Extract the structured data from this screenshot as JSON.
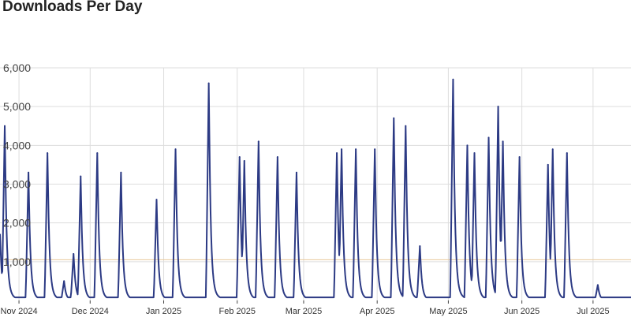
{
  "colors": {
    "line": "#2c3a84",
    "grid": "#dddddd",
    "reference": "#e8c89a",
    "axis": "#444444"
  },
  "chart_data": {
    "type": "line",
    "title": "Downloads Per Day",
    "xlabel": "",
    "ylabel": "",
    "ylim": [
      0,
      6000
    ],
    "yticks": [
      1000,
      2000,
      3000,
      4000,
      5000,
      6000
    ],
    "ytick_labels": [
      "1,000",
      "2,000",
      "3,000",
      "4,000",
      "5,000",
      "6,000"
    ],
    "xlim": [
      "2024-10-24",
      "2025-07-17"
    ],
    "xticks": [
      {
        "date": "2024-11-01",
        "label": "Nov 2024"
      },
      {
        "date": "2024-12-01",
        "label": "Dec 2024"
      },
      {
        "date": "2025-01-01",
        "label": "Jan 2025"
      },
      {
        "date": "2025-02-01",
        "label": "Feb 2025"
      },
      {
        "date": "2025-03-01",
        "label": "Mar 2025"
      },
      {
        "date": "2025-04-01",
        "label": "Apr 2025"
      },
      {
        "date": "2025-05-01",
        "label": "May 2025"
      },
      {
        "date": "2025-06-01",
        "label": "Jun 2025"
      },
      {
        "date": "2025-07-01",
        "label": "Jul 2025"
      }
    ],
    "reference_line": 1050,
    "grid": true,
    "baseline": 80,
    "peaks": [
      {
        "date": "2024-10-24",
        "value": 1700
      },
      {
        "date": "2024-10-26",
        "value": 4500
      },
      {
        "date": "2024-11-05",
        "value": 3300
      },
      {
        "date": "2024-11-13",
        "value": 3800
      },
      {
        "date": "2024-11-20",
        "value": 500
      },
      {
        "date": "2024-11-24",
        "value": 1200
      },
      {
        "date": "2024-11-27",
        "value": 3200
      },
      {
        "date": "2024-12-04",
        "value": 3800
      },
      {
        "date": "2024-12-14",
        "value": 3300
      },
      {
        "date": "2024-12-29",
        "value": 2600
      },
      {
        "date": "2025-01-06",
        "value": 3900
      },
      {
        "date": "2025-01-20",
        "value": 5600
      },
      {
        "date": "2025-02-02",
        "value": 3700
      },
      {
        "date": "2025-02-04",
        "value": 3600
      },
      {
        "date": "2025-02-10",
        "value": 4100
      },
      {
        "date": "2025-02-18",
        "value": 3700
      },
      {
        "date": "2025-02-26",
        "value": 3300
      },
      {
        "date": "2025-03-15",
        "value": 3800
      },
      {
        "date": "2025-03-17",
        "value": 3900
      },
      {
        "date": "2025-03-23",
        "value": 3900
      },
      {
        "date": "2025-03-31",
        "value": 3900
      },
      {
        "date": "2025-04-08",
        "value": 4700
      },
      {
        "date": "2025-04-13",
        "value": 4500
      },
      {
        "date": "2025-04-19",
        "value": 1400
      },
      {
        "date": "2025-05-03",
        "value": 5700
      },
      {
        "date": "2025-05-09",
        "value": 4000
      },
      {
        "date": "2025-05-12",
        "value": 3800
      },
      {
        "date": "2025-05-18",
        "value": 4200
      },
      {
        "date": "2025-05-22",
        "value": 5000
      },
      {
        "date": "2025-05-24",
        "value": 4100
      },
      {
        "date": "2025-05-31",
        "value": 3700
      },
      {
        "date": "2025-06-12",
        "value": 3500
      },
      {
        "date": "2025-06-14",
        "value": 3900
      },
      {
        "date": "2025-06-20",
        "value": 3800
      },
      {
        "date": "2025-07-03",
        "value": 400
      }
    ]
  }
}
